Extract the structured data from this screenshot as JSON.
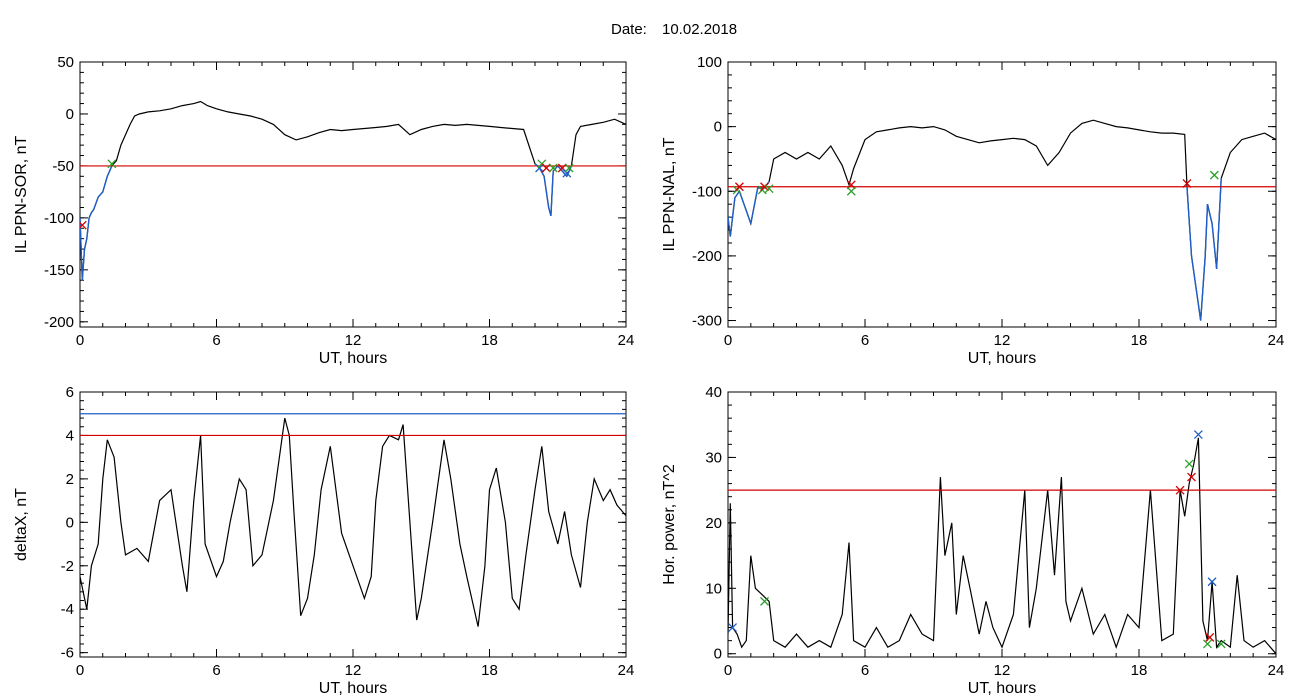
{
  "figure": {
    "title_label": "Date:",
    "title_date": "10.02.2018"
  },
  "chart_data": [
    {
      "id": "p1",
      "type": "line",
      "title": "",
      "xlabel": "UT, hours",
      "ylabel": "IL PPN-SOR, nT",
      "xlim": [
        0,
        24
      ],
      "ylim": [
        -205,
        50
      ],
      "x_ticks": [
        0,
        6,
        12,
        18,
        24
      ],
      "y_ticks": [
        50,
        0,
        -50,
        -100,
        -150,
        -200
      ],
      "threshold": -50,
      "threshold_color": "#d40000",
      "line_color": "#000000",
      "highlight_color": "#1f5fc7",
      "series": [
        {
          "x": [
            0.0,
            0.1,
            0.2,
            0.3,
            0.4,
            0.5,
            0.6,
            0.8,
            1.0,
            1.2,
            1.4,
            1.6,
            1.8,
            2.0,
            2.2,
            2.4,
            2.6,
            3.0,
            3.5,
            4.0,
            4.5,
            5.0,
            5.3,
            5.6,
            6.0,
            6.5,
            7.0,
            7.5,
            8.0,
            8.5,
            9.0,
            9.5,
            10.0,
            10.5,
            11.0,
            11.5,
            12.0,
            12.5,
            13.0,
            13.5,
            14.0,
            14.5,
            15.0,
            15.5,
            16.0,
            16.5,
            17.0,
            17.5,
            18.0,
            18.5,
            19.0,
            19.5,
            20.0,
            20.2,
            20.4,
            20.6,
            20.7,
            20.8,
            21.0,
            21.2,
            21.4,
            21.6,
            21.8,
            22.0,
            22.5,
            23.0,
            23.5,
            24.0
          ],
          "y": [
            -100,
            -160,
            -130,
            -120,
            -100,
            -95,
            -92,
            -80,
            -75,
            -60,
            -50,
            -45,
            -30,
            -20,
            -10,
            -2,
            0,
            2,
            3,
            5,
            8,
            10,
            12,
            8,
            5,
            2,
            0,
            -2,
            -5,
            -10,
            -20,
            -25,
            -22,
            -18,
            -15,
            -16,
            -15,
            -14,
            -13,
            -12,
            -10,
            -20,
            -15,
            -12,
            -10,
            -11,
            -10,
            -11,
            -12,
            -13,
            -14,
            -15,
            -48,
            -52,
            -60,
            -90,
            -98,
            -55,
            -50,
            -55,
            -60,
            -50,
            -20,
            -12,
            -10,
            -8,
            -5,
            -10
          ]
        }
      ],
      "markers": [
        {
          "x": 0.1,
          "y": -107,
          "color": "#d40000"
        },
        {
          "x": 1.4,
          "y": -48,
          "color": "#2ca02c"
        },
        {
          "x": 20.2,
          "y": -52,
          "color": "#1f5fc7"
        },
        {
          "x": 20.3,
          "y": -48,
          "color": "#2ca02c"
        },
        {
          "x": 20.5,
          "y": -52,
          "color": "#d40000"
        },
        {
          "x": 20.8,
          "y": -52,
          "color": "#2ca02c"
        },
        {
          "x": 21.2,
          "y": -52,
          "color": "#d40000"
        },
        {
          "x": 21.4,
          "y": -57,
          "color": "#1f5fc7"
        },
        {
          "x": 21.5,
          "y": -52,
          "color": "#2ca02c"
        }
      ]
    },
    {
      "id": "p2",
      "type": "line",
      "title": "",
      "xlabel": "UT, hours",
      "ylabel": "IL PPN-NAL, nT",
      "xlim": [
        0,
        24
      ],
      "ylim": [
        -310,
        100
      ],
      "x_ticks": [
        0,
        6,
        12,
        18,
        24
      ],
      "y_ticks": [
        100,
        0,
        -100,
        -200,
        -300
      ],
      "threshold": -93,
      "threshold_color": "#d40000",
      "line_color": "#000000",
      "highlight_color": "#1f5fc7",
      "series": [
        {
          "x": [
            0.0,
            0.1,
            0.3,
            0.5,
            0.8,
            1.0,
            1.3,
            1.6,
            1.8,
            2.0,
            2.5,
            3.0,
            3.5,
            4.0,
            4.5,
            5.0,
            5.3,
            5.5,
            6.0,
            6.5,
            7.0,
            7.5,
            8.0,
            8.5,
            9.0,
            9.5,
            10.0,
            10.5,
            11.0,
            11.5,
            12.0,
            12.5,
            13.0,
            13.5,
            14.0,
            14.5,
            15.0,
            15.5,
            16.0,
            16.5,
            17.0,
            17.5,
            18.0,
            18.5,
            19.0,
            19.5,
            20.0,
            20.1,
            20.3,
            20.5,
            20.7,
            20.9,
            21.0,
            21.2,
            21.4,
            21.6,
            22.0,
            22.5,
            23.0,
            23.5,
            24.0
          ],
          "y": [
            -140,
            -170,
            -110,
            -100,
            -130,
            -150,
            -95,
            -95,
            -85,
            -50,
            -40,
            -50,
            -40,
            -50,
            -30,
            -60,
            -90,
            -65,
            -20,
            -8,
            -5,
            -2,
            0,
            -2,
            0,
            -5,
            -15,
            -20,
            -25,
            -22,
            -20,
            -18,
            -20,
            -30,
            -60,
            -40,
            -10,
            5,
            10,
            5,
            0,
            -2,
            -5,
            -8,
            -10,
            -10,
            -12,
            -93,
            -200,
            -250,
            -300,
            -200,
            -120,
            -150,
            -220,
            -80,
            -40,
            -20,
            -15,
            -10,
            -20
          ]
        }
      ],
      "markers": [
        {
          "x": 0.4,
          "y": -98,
          "color": "#2ca02c"
        },
        {
          "x": 0.5,
          "y": -93,
          "color": "#d40000"
        },
        {
          "x": 1.5,
          "y": -98,
          "color": "#2ca02c"
        },
        {
          "x": 1.6,
          "y": -93,
          "color": "#d40000"
        },
        {
          "x": 1.8,
          "y": -96,
          "color": "#2ca02c"
        },
        {
          "x": 5.4,
          "y": -90,
          "color": "#d40000"
        },
        {
          "x": 5.4,
          "y": -100,
          "color": "#2ca02c"
        },
        {
          "x": 20.1,
          "y": -88,
          "color": "#d40000"
        },
        {
          "x": 21.3,
          "y": -75,
          "color": "#2ca02c"
        }
      ]
    },
    {
      "id": "p3",
      "type": "line",
      "title": "",
      "xlabel": "UT, hours",
      "ylabel": "deltaX, nT",
      "xlim": [
        0,
        24
      ],
      "ylim": [
        -6.2,
        6
      ],
      "x_ticks": [
        0,
        6,
        12,
        18,
        24
      ],
      "y_ticks": [
        6,
        4,
        2,
        0,
        -2,
        -4,
        -6
      ],
      "threshold": 4,
      "threshold_color": "#d40000",
      "threshold2": 5,
      "threshold2_color": "#1f5fc7",
      "line_color": "#000000",
      "series": [
        {
          "x": [
            0.0,
            0.3,
            0.5,
            0.8,
            1.0,
            1.2,
            1.5,
            1.8,
            2.0,
            2.5,
            3.0,
            3.5,
            4.0,
            4.5,
            4.7,
            5.0,
            5.3,
            5.5,
            6.0,
            6.3,
            6.6,
            7.0,
            7.3,
            7.6,
            8.0,
            8.5,
            9.0,
            9.2,
            9.4,
            9.7,
            10.0,
            10.3,
            10.6,
            11.0,
            11.5,
            12.0,
            12.5,
            12.8,
            13.0,
            13.3,
            13.6,
            14.0,
            14.2,
            14.5,
            14.8,
            15.0,
            15.5,
            16.0,
            16.3,
            16.7,
            17.0,
            17.5,
            17.8,
            18.0,
            18.3,
            18.7,
            19.0,
            19.3,
            19.6,
            20.0,
            20.3,
            20.6,
            21.0,
            21.3,
            21.6,
            22.0,
            22.3,
            22.6,
            23.0,
            23.3,
            23.6,
            24.0
          ],
          "y": [
            -2.5,
            -4.0,
            -2.0,
            -1.0,
            2.0,
            3.8,
            3.0,
            0.0,
            -1.5,
            -1.2,
            -1.8,
            1.0,
            1.5,
            -2.0,
            -3.2,
            1.0,
            4.0,
            -1.0,
            -2.5,
            -1.8,
            0.0,
            2.0,
            1.5,
            -2.0,
            -1.5,
            1.0,
            4.8,
            4.0,
            0.5,
            -4.3,
            -3.5,
            -1.5,
            1.5,
            3.5,
            -0.5,
            -2.0,
            -3.5,
            -2.5,
            1.0,
            3.5,
            4.0,
            3.8,
            4.5,
            0.0,
            -4.5,
            -3.5,
            0.0,
            3.8,
            2.0,
            -1.0,
            -2.5,
            -4.8,
            -2.0,
            1.5,
            2.5,
            0.0,
            -3.5,
            -4.0,
            -1.5,
            1.5,
            3.5,
            0.5,
            -1.0,
            0.5,
            -1.5,
            -3.0,
            0.0,
            2.0,
            1.0,
            1.5,
            0.8,
            0.3
          ]
        }
      ],
      "markers": []
    },
    {
      "id": "p4",
      "type": "line",
      "title": "",
      "xlabel": "UT, hours",
      "ylabel": "Hor. power, nT^2",
      "xlim": [
        0,
        24
      ],
      "ylim": [
        -0.5,
        40
      ],
      "x_ticks": [
        0,
        6,
        12,
        18,
        24
      ],
      "y_ticks": [
        40,
        30,
        20,
        10,
        0
      ],
      "threshold": 25,
      "threshold_color": "#d40000",
      "line_color": "#000000",
      "series": [
        {
          "x": [
            0.0,
            0.1,
            0.2,
            0.4,
            0.6,
            0.8,
            1.0,
            1.2,
            1.5,
            1.8,
            2.0,
            2.5,
            3.0,
            3.5,
            4.0,
            4.5,
            5.0,
            5.3,
            5.5,
            6.0,
            6.5,
            7.0,
            7.5,
            8.0,
            8.5,
            9.0,
            9.3,
            9.5,
            9.8,
            10.0,
            10.3,
            10.6,
            11.0,
            11.3,
            11.6,
            12.0,
            12.5,
            13.0,
            13.2,
            13.5,
            14.0,
            14.3,
            14.6,
            14.8,
            15.0,
            15.5,
            16.0,
            16.5,
            17.0,
            17.5,
            18.0,
            18.5,
            19.0,
            19.5,
            19.8,
            20.0,
            20.2,
            20.4,
            20.6,
            20.8,
            21.0,
            21.2,
            21.4,
            21.6,
            22.0,
            22.3,
            22.6,
            23.0,
            23.5,
            24.0
          ],
          "y": [
            3,
            23,
            4,
            3,
            1,
            2,
            15,
            10,
            9,
            8,
            2,
            1,
            3,
            1,
            2,
            1,
            6,
            17,
            2,
            1,
            4,
            1,
            2,
            6,
            3,
            2,
            27,
            15,
            20,
            6,
            15,
            10,
            3,
            8,
            4,
            1,
            6,
            25,
            4,
            10,
            25,
            12,
            27,
            8,
            5,
            10,
            3,
            6,
            1,
            6,
            4,
            25,
            2,
            3,
            25,
            21,
            26,
            29,
            33,
            5,
            2,
            11,
            1,
            2,
            1,
            12,
            2,
            1,
            2,
            0
          ]
        }
      ],
      "markers": [
        {
          "x": 0.2,
          "y": 4,
          "color": "#1f5fc7"
        },
        {
          "x": 1.6,
          "y": 8,
          "color": "#2ca02c"
        },
        {
          "x": 19.8,
          "y": 25,
          "color": "#d40000"
        },
        {
          "x": 20.2,
          "y": 29,
          "color": "#2ca02c"
        },
        {
          "x": 20.3,
          "y": 27,
          "color": "#d40000"
        },
        {
          "x": 20.6,
          "y": 33.5,
          "color": "#1f5fc7"
        },
        {
          "x": 21.0,
          "y": 1.5,
          "color": "#2ca02c"
        },
        {
          "x": 21.1,
          "y": 2.5,
          "color": "#d40000"
        },
        {
          "x": 21.2,
          "y": 11,
          "color": "#1f5fc7"
        },
        {
          "x": 21.6,
          "y": 1.5,
          "color": "#2ca02c"
        }
      ]
    }
  ]
}
